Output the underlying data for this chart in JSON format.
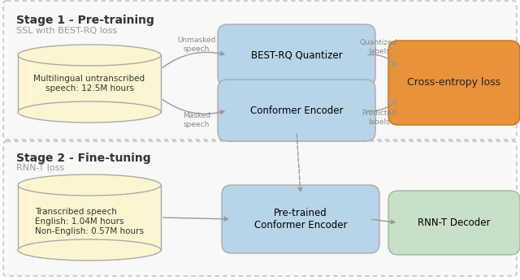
{
  "fig_width": 6.4,
  "fig_height": 3.45,
  "bg_color": "#ffffff",
  "color_cylinder": "#fdf5d0",
  "color_blue_box": "#b8d4e8",
  "color_orange_box": "#e8923a",
  "color_green_box": "#c8dfc8",
  "color_stage_bg": "#f8f8f8",
  "color_border": "#aaaaaa",
  "color_arrow": "#999999",
  "color_title": "#333333",
  "color_subtitle": "#999999",
  "color_label_text": "#888888",
  "stage1_title": "Stage 1 - Pre-training",
  "stage1_subtitle": "SSL with BEST-RQ loss",
  "stage2_title": "Stage 2 - Fine-tuning",
  "stage2_subtitle": "RNN-T loss",
  "cylinder1_label": "Multilingual untranscribed\nspeech: 12.5M hours",
  "cylinder2_label": "Transcribed speech\nEnglish: 1.04M hours\nNon-English: 0.57M hours",
  "box_quantizer_label": "BEST-RQ Quantizer",
  "box_conformer1_label": "Conformer Encoder",
  "box_cross_entropy_label": "Cross-entropy loss",
  "box_pretrained_label": "Pre-trained\nConformer Encoder",
  "box_rnnt_label": "RNN-T Decoder",
  "label_unmasked": "Unmasked\nspeech",
  "label_masked": "Masked\nspeech",
  "label_quantized": "Quantized\nlabels",
  "label_predicted": "Predicted\nlabels",
  "font_size_title": 10,
  "font_size_subtitle": 8,
  "font_size_box": 8.5,
  "font_size_label": 6.5
}
